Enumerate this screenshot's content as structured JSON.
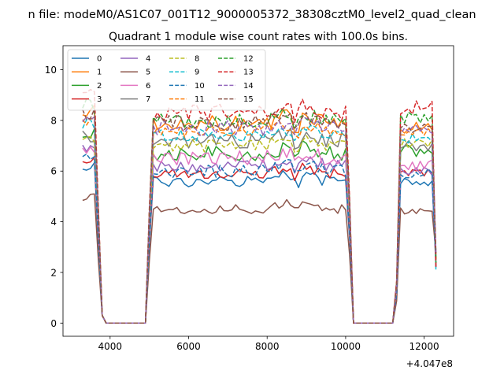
{
  "header": {
    "suptitle": "n file: modeM0/AS1C07_001T12_9000005372_38308cztM0_level2_quad_clean"
  },
  "chart_data": {
    "type": "line",
    "title": "Quadrant 1 module wise count rates with 100.0s bins.",
    "xlabel": "",
    "ylabel": "",
    "x_offset_label": "+4.047e8",
    "xlim": [
      2800,
      12750
    ],
    "ylim": [
      -0.52,
      10.95
    ],
    "xticks": [
      4000,
      6000,
      8000,
      10000,
      12000
    ],
    "xtick_labels": [
      "4000",
      "6000",
      "8000",
      "10000",
      "12000"
    ],
    "yticks": [
      0,
      2,
      4,
      6,
      8,
      10
    ],
    "ytick_labels": [
      "0",
      "2",
      "4",
      "6",
      "8",
      "10"
    ],
    "grid": false,
    "legend_position": "upper-left",
    "legend_columns": 4,
    "segments": [
      {
        "start": 3300,
        "end": 3800,
        "step": 100
      },
      {
        "start": 5000,
        "end": 10100,
        "step": 100
      },
      {
        "start": 11300,
        "end": 12300,
        "step": 100
      }
    ],
    "series": [
      {
        "name": "0",
        "color": "#1f77b4",
        "dash": "solid",
        "level": 5.6,
        "noise": 0.22,
        "g1": 6.2,
        "g3": 5.6
      },
      {
        "name": "1",
        "color": "#ff7f0e",
        "dash": "solid",
        "level": 7.9,
        "noise": 0.3,
        "g1": 8.4,
        "g3": 7.7
      },
      {
        "name": "2",
        "color": "#2ca02c",
        "dash": "solid",
        "level": 6.7,
        "noise": 0.3,
        "g1": 7.5,
        "g3": 6.8
      },
      {
        "name": "3",
        "color": "#d62728",
        "dash": "solid",
        "level": 5.9,
        "noise": 0.2,
        "g1": 6.5,
        "g3": 5.9
      },
      {
        "name": "4",
        "color": "#9467bd",
        "dash": "solid",
        "level": 6.2,
        "noise": 0.25,
        "g1": 6.8,
        "g3": 6.0
      },
      {
        "name": "5",
        "color": "#8c564b",
        "dash": "solid",
        "level": 4.5,
        "noise": 0.18,
        "g1": 5.0,
        "g3": 4.4
      },
      {
        "name": "6",
        "color": "#e377c2",
        "dash": "solid",
        "level": 6.5,
        "noise": 0.3,
        "g1": 7.0,
        "g3": 6.2
      },
      {
        "name": "7",
        "color": "#7f7f7f",
        "dash": "solid",
        "level": 7.2,
        "noise": 0.3,
        "g1": 7.4,
        "g3": 7.0
      },
      {
        "name": "8",
        "color": "#bcbd22",
        "dash": "dashed",
        "level": 7.0,
        "noise": 0.25,
        "g1": 7.3,
        "g3": 7.1
      },
      {
        "name": "9",
        "color": "#17becf",
        "dash": "dashed",
        "level": 7.4,
        "noise": 0.25,
        "g1": 7.8,
        "g3": 7.3
      },
      {
        "name": "10",
        "color": "#1f77b4",
        "dash": "dashed",
        "level": 6.0,
        "noise": 0.25,
        "g1": 6.6,
        "g3": 5.9
      },
      {
        "name": "11",
        "color": "#ff7f0e",
        "dash": "dashed",
        "level": 7.6,
        "noise": 0.25,
        "g1": 8.0,
        "g3": 7.5
      },
      {
        "name": "12",
        "color": "#2ca02c",
        "dash": "dashed",
        "level": 8.0,
        "noise": 0.3,
        "g1": 8.6,
        "g3": 8.1
      },
      {
        "name": "13",
        "color": "#d62728",
        "dash": "dashed",
        "level": 8.3,
        "noise": 0.35,
        "g1": 9.0,
        "g3": 8.5
      },
      {
        "name": "14",
        "color": "#9467bd",
        "dash": "dashed",
        "level": 7.7,
        "noise": 0.3,
        "g1": 8.1,
        "g3": 7.6
      },
      {
        "name": "15",
        "color": "#8c564b",
        "dash": "dashed",
        "level": 7.9,
        "noise": 0.3,
        "g1": 8.3,
        "g3": 7.7
      }
    ]
  }
}
